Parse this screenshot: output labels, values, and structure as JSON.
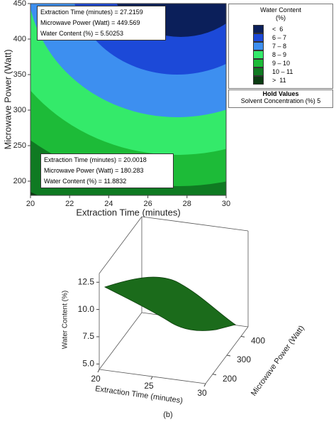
{
  "chart_data": [
    {
      "type": "contour",
      "x_label": "Extraction Time (minutes)",
      "y_label": "Microwave Power (Watt)",
      "xlim": [
        20,
        30
      ],
      "ylim": [
        180,
        450
      ],
      "xticks": [
        20,
        22,
        24,
        26,
        28,
        30
      ],
      "yticks": [
        200,
        250,
        300,
        350,
        400,
        450
      ],
      "legend": {
        "title": "Water Content (%)",
        "entries": [
          {
            "label": "<  6",
            "color": "#0b1f5a"
          },
          {
            "label": "6 – 7",
            "color": "#1c49d8"
          },
          {
            "label": "7 – 8",
            "color": "#3d8ff0"
          },
          {
            "label": "8 – 9",
            "color": "#34ea6a"
          },
          {
            "label": "9 – 10",
            "color": "#1dbb38"
          },
          {
            "label": "10 – 11",
            "color": "#0f7a22"
          },
          {
            "label": ">  11",
            "color": "#0b3b12"
          }
        ]
      },
      "hold_values": {
        "title": "Hold Values",
        "items": [
          "Solvent Concentration (%) 5"
        ]
      },
      "annotations": [
        {
          "lines": [
            "Extraction Time (minutes) = 27.2159",
            "Microwave Power (Watt) = 449.569",
            "Water Content (%) = 5.50253"
          ]
        },
        {
          "lines": [
            "Extraction Time (minutes) = 20.0018",
            "Microwave Power (Watt) = 180.283",
            "Water Content (%) = 11.8832"
          ]
        }
      ]
    },
    {
      "type": "surface",
      "x_label": "Extraction Time (minutes)",
      "y_label": "Microwave Power (Watt)",
      "z_label": "Water Content (%)",
      "xlim": [
        20,
        30
      ],
      "ylim": [
        150,
        450
      ],
      "zlim": [
        4.5,
        13.3
      ],
      "xticks": [
        20,
        25,
        30
      ],
      "yticks": [
        200,
        300,
        400
      ],
      "zticks": [
        {
          "value": 5,
          "label": "5.0"
        },
        {
          "value": 7.5,
          "label": "7.5"
        },
        {
          "value": 10,
          "label": "10.0"
        },
        {
          "value": 12.5,
          "label": "12.5"
        }
      ],
      "color": "#1b6b1b"
    }
  ],
  "caption": "(b)"
}
